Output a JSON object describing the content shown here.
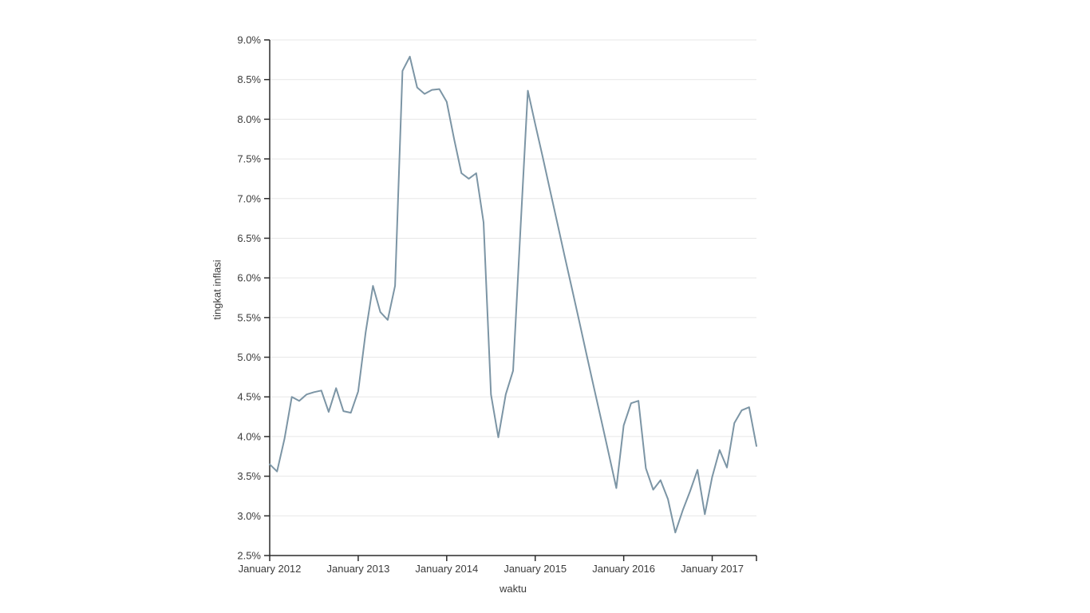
{
  "chart_data": {
    "type": "line",
    "title": "",
    "xlabel": "waktu",
    "ylabel": "tingkat inflasi",
    "y_unit": "percent",
    "ylim": [
      2.5,
      9.0
    ],
    "y_tick_step": 0.5,
    "y_tick_values": [
      2.5,
      3.0,
      3.5,
      4.0,
      4.5,
      5.0,
      5.5,
      6.0,
      6.5,
      7.0,
      7.5,
      8.0,
      8.5,
      9.0
    ],
    "y_tick_labels": [
      "2.5%",
      "3.0%",
      "3.5%",
      "4.0%",
      "4.5%",
      "5.0%",
      "5.5%",
      "6.0%",
      "6.5%",
      "7.0%",
      "7.5%",
      "8.0%",
      "8.5%",
      "9.0%"
    ],
    "x_tick_month_indices": [
      0,
      12,
      24,
      36,
      48,
      60
    ],
    "x_tick_labels": [
      "January 2012",
      "January 2013",
      "January 2014",
      "January 2015",
      "January 2016",
      "January 2017"
    ],
    "x_end_tick_month_index": 66,
    "grid": true,
    "legend_position": "none",
    "line_color": "#7c95a5",
    "grid_color": "#e7e7e7",
    "axis_color": "#2b2b2b",
    "label_color": "#3b3b3b",
    "background_color": "#ffffff",
    "x": [
      "2012-01",
      "2012-02",
      "2012-03",
      "2012-04",
      "2012-05",
      "2012-06",
      "2012-07",
      "2012-08",
      "2012-09",
      "2012-10",
      "2012-11",
      "2012-12",
      "2013-01",
      "2013-02",
      "2013-03",
      "2013-04",
      "2013-05",
      "2013-06",
      "2013-07",
      "2013-08",
      "2013-09",
      "2013-10",
      "2013-11",
      "2013-12",
      "2014-01",
      "2014-02",
      "2014-03",
      "2014-04",
      "2014-05",
      "2014-06",
      "2014-07",
      "2014-08",
      "2014-09",
      "2014-10",
      "2014-11",
      "2014-12",
      "2015-01",
      "2015-02",
      "2015-03",
      "2015-04",
      "2015-05",
      "2015-06",
      "2015-07",
      "2015-08",
      "2015-09",
      "2015-10",
      "2015-11",
      "2015-12",
      "2016-01",
      "2016-02",
      "2016-03",
      "2016-04",
      "2016-05",
      "2016-06",
      "2016-07",
      "2016-08",
      "2016-09",
      "2016-10",
      "2016-11",
      "2016-12",
      "2017-01",
      "2017-02",
      "2017-03",
      "2017-04",
      "2017-05",
      "2017-06",
      "2017-07"
    ],
    "series": [
      {
        "name": "tingkat inflasi",
        "values": [
          3.65,
          3.56,
          3.97,
          4.5,
          4.45,
          4.53,
          4.56,
          4.58,
          4.31,
          4.61,
          4.32,
          4.3,
          4.57,
          5.31,
          5.9,
          5.57,
          5.47,
          5.9,
          8.61,
          8.79,
          8.4,
          8.32,
          8.37,
          8.38,
          8.22,
          7.75,
          7.32,
          7.25,
          7.32,
          6.7,
          4.53,
          3.99,
          4.53,
          4.83,
          6.6,
          8.36,
          7.94,
          7.53,
          7.11,
          6.69,
          6.27,
          5.86,
          5.44,
          5.02,
          4.6,
          4.19,
          3.77,
          3.35,
          4.14,
          4.42,
          4.45,
          3.6,
          3.33,
          3.45,
          3.21,
          2.79,
          3.07,
          3.31,
          3.58,
          3.02,
          3.49,
          3.83,
          3.61,
          4.17,
          4.33,
          4.37,
          3.88
        ]
      }
    ]
  }
}
